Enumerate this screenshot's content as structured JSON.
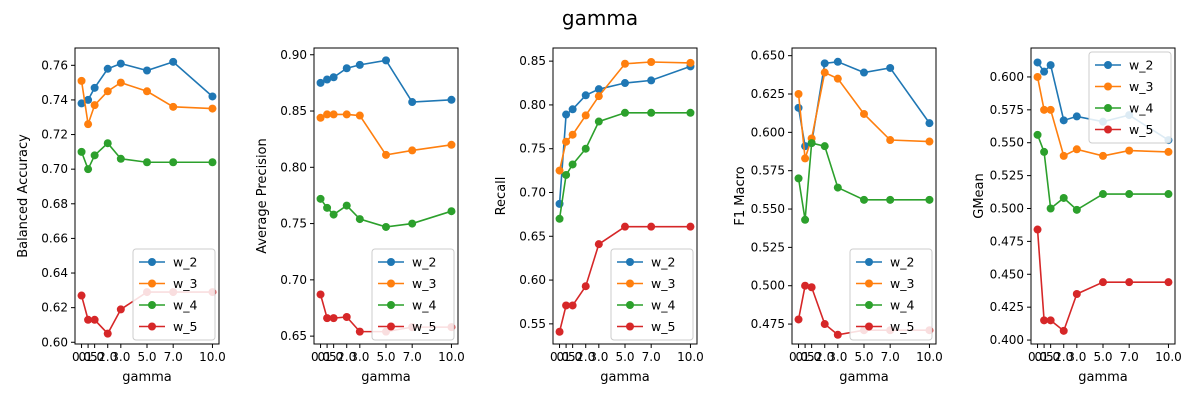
{
  "figure": {
    "title": "gamma"
  },
  "colors": {
    "w_2": "#1f77b4",
    "w_3": "#ff7f0e",
    "w_4": "#2ca02c",
    "w_5": "#d62728"
  },
  "chart_data": [
    {
      "type": "line",
      "ylabel": "Balanced Accuracy",
      "xlabel": "gamma",
      "x": [
        0,
        0.5,
        1,
        2,
        3,
        5,
        7,
        10
      ],
      "xtick_labels": [
        "0.0",
        "0.5",
        "1.0",
        "2.0",
        "3.0",
        "5.0",
        "7.0",
        "10.0"
      ],
      "ylim": [
        0.599,
        0.77
      ],
      "yticks": [
        0.6,
        0.62,
        0.64,
        0.66,
        0.68,
        0.7,
        0.72,
        0.74,
        0.76
      ],
      "ytick_labels": [
        "0.60",
        "0.62",
        "0.64",
        "0.66",
        "0.68",
        "0.70",
        "0.72",
        "0.74",
        "0.76"
      ],
      "legend_position": "lower-right",
      "series": [
        {
          "name": "w_2",
          "values": [
            0.738,
            0.74,
            0.747,
            0.758,
            0.761,
            0.757,
            0.762,
            0.742
          ]
        },
        {
          "name": "w_3",
          "values": [
            0.751,
            0.726,
            0.737,
            0.745,
            0.75,
            0.745,
            0.736,
            0.735
          ]
        },
        {
          "name": "w_4",
          "values": [
            0.71,
            0.7,
            0.708,
            0.715,
            0.706,
            0.704,
            0.704,
            0.704
          ]
        },
        {
          "name": "w_5",
          "values": [
            0.627,
            0.613,
            0.613,
            0.605,
            0.619,
            0.629,
            0.629,
            0.629
          ]
        }
      ]
    },
    {
      "type": "line",
      "ylabel": "Average Precision",
      "xlabel": "gamma",
      "x": [
        0,
        0.5,
        1,
        2,
        3,
        5,
        7,
        10
      ],
      "xtick_labels": [
        "0.0",
        "0.5",
        "1.0",
        "2.0",
        "3.0",
        "5.0",
        "7.0",
        "10.0"
      ],
      "ylim": [
        0.643,
        0.906
      ],
      "yticks": [
        0.65,
        0.7,
        0.75,
        0.8,
        0.85,
        0.9
      ],
      "ytick_labels": [
        "0.65",
        "0.70",
        "0.75",
        "0.80",
        "0.85",
        "0.90"
      ],
      "legend_position": "lower-right",
      "series": [
        {
          "name": "w_2",
          "values": [
            0.875,
            0.878,
            0.88,
            0.888,
            0.891,
            0.895,
            0.858,
            0.86
          ]
        },
        {
          "name": "w_3",
          "values": [
            0.844,
            0.847,
            0.847,
            0.847,
            0.846,
            0.811,
            0.815,
            0.82
          ]
        },
        {
          "name": "w_4",
          "values": [
            0.772,
            0.764,
            0.758,
            0.766,
            0.754,
            0.747,
            0.75,
            0.761
          ]
        },
        {
          "name": "w_5",
          "values": [
            0.687,
            0.666,
            0.666,
            0.667,
            0.654,
            0.654,
            0.658,
            0.658
          ]
        }
      ]
    },
    {
      "type": "line",
      "ylabel": "Recall",
      "xlabel": "gamma",
      "x": [
        0,
        0.5,
        1,
        2,
        3,
        5,
        7,
        10
      ],
      "xtick_labels": [
        "0.0",
        "0.5",
        "1.0",
        "2.0",
        "3.0",
        "5.0",
        "7.0",
        "10.0"
      ],
      "ylim": [
        0.527,
        0.865
      ],
      "yticks": [
        0.55,
        0.6,
        0.65,
        0.7,
        0.75,
        0.8,
        0.85
      ],
      "ytick_labels": [
        "0.55",
        "0.60",
        "0.65",
        "0.70",
        "0.75",
        "0.80",
        "0.85"
      ],
      "legend_position": "lower-right",
      "series": [
        {
          "name": "w_2",
          "values": [
            0.687,
            0.789,
            0.795,
            0.811,
            0.818,
            0.825,
            0.828,
            0.844
          ]
        },
        {
          "name": "w_3",
          "values": [
            0.725,
            0.758,
            0.766,
            0.788,
            0.81,
            0.847,
            0.849,
            0.848
          ]
        },
        {
          "name": "w_4",
          "values": [
            0.67,
            0.72,
            0.732,
            0.75,
            0.781,
            0.791,
            0.791,
            0.791
          ]
        },
        {
          "name": "w_5",
          "values": [
            0.541,
            0.571,
            0.571,
            0.593,
            0.641,
            0.661,
            0.661,
            0.661
          ]
        }
      ]
    },
    {
      "type": "line",
      "ylabel": "F1 Macro",
      "xlabel": "gamma",
      "x": [
        0,
        0.5,
        1,
        2,
        3,
        5,
        7,
        10
      ],
      "xtick_labels": [
        "0.0",
        "0.5",
        "1.0",
        "2.0",
        "3.0",
        "5.0",
        "7.0",
        "10.0"
      ],
      "ylim": [
        0.462,
        0.655
      ],
      "yticks": [
        0.475,
        0.5,
        0.525,
        0.55,
        0.575,
        0.6,
        0.625,
        0.65
      ],
      "ytick_labels": [
        "0.475",
        "0.500",
        "0.525",
        "0.550",
        "0.575",
        "0.600",
        "0.625",
        "0.650"
      ],
      "legend_position": "lower-right",
      "series": [
        {
          "name": "w_2",
          "values": [
            0.616,
            0.591,
            0.593,
            0.645,
            0.646,
            0.639,
            0.642,
            0.606
          ]
        },
        {
          "name": "w_3",
          "values": [
            0.625,
            0.583,
            0.596,
            0.639,
            0.635,
            0.612,
            0.595,
            0.594
          ]
        },
        {
          "name": "w_4",
          "values": [
            0.57,
            0.543,
            0.593,
            0.591,
            0.564,
            0.556,
            0.556,
            0.556
          ]
        },
        {
          "name": "w_5",
          "values": [
            0.478,
            0.5,
            0.499,
            0.475,
            0.468,
            0.471,
            0.471,
            0.471
          ]
        }
      ]
    },
    {
      "type": "line",
      "ylabel": "GMean",
      "xlabel": "gamma",
      "x": [
        0,
        0.5,
        1,
        2,
        3,
        5,
        7,
        10
      ],
      "xtick_labels": [
        "0.0",
        "0.5",
        "1.0",
        "2.0",
        "3.0",
        "5.0",
        "7.0",
        "10.0"
      ],
      "ylim": [
        0.397,
        0.622
      ],
      "yticks": [
        0.4,
        0.425,
        0.45,
        0.475,
        0.5,
        0.525,
        0.55,
        0.575,
        0.6
      ],
      "ytick_labels": [
        "0.400",
        "0.425",
        "0.450",
        "0.475",
        "0.500",
        "0.525",
        "0.550",
        "0.575",
        "0.600"
      ],
      "legend_position": "top-right",
      "series": [
        {
          "name": "w_2",
          "values": [
            0.611,
            0.604,
            0.609,
            0.567,
            0.57,
            0.566,
            0.571,
            0.552
          ]
        },
        {
          "name": "w_3",
          "values": [
            0.6,
            0.575,
            0.575,
            0.54,
            0.545,
            0.54,
            0.544,
            0.543
          ]
        },
        {
          "name": "w_4",
          "values": [
            0.556,
            0.543,
            0.5,
            0.508,
            0.499,
            0.511,
            0.511,
            0.511
          ]
        },
        {
          "name": "w_5",
          "values": [
            0.484,
            0.415,
            0.415,
            0.407,
            0.435,
            0.444,
            0.444,
            0.444
          ]
        }
      ]
    }
  ]
}
